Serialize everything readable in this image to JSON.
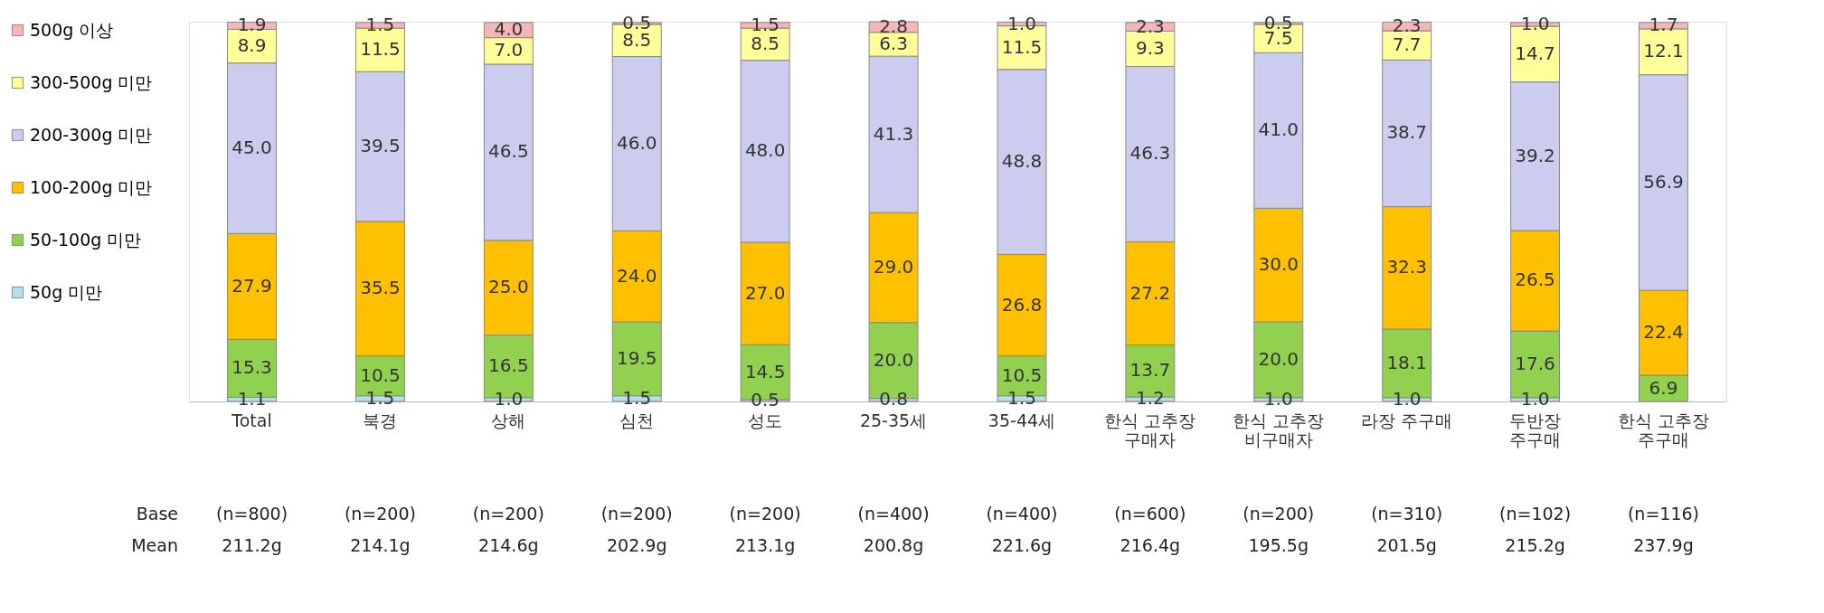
{
  "chart_data": {
    "type": "bar",
    "stacked": true,
    "legend": "left",
    "tick_labels": "x",
    "categories": [
      "Total",
      "북경",
      "상해",
      "심천",
      "성도",
      "25-35세",
      "35-44세",
      "한식 고추장 구매자",
      "한식 고추장 비구매자",
      "라장 주구매",
      "두반장 주구매",
      "한식 고추장 주구매"
    ],
    "series": [
      {
        "name": "50g 미만",
        "color": "#b7dde8",
        "values": [
          1.1,
          1.5,
          1.0,
          1.5,
          0.5,
          0.8,
          1.5,
          1.2,
          1.0,
          1.0,
          1.0,
          null
        ],
        "value_labels": [
          "1.1",
          "1.5",
          "1.0",
          "1.5",
          "0.5",
          "0.8",
          "1.5",
          "1.2",
          "1.0",
          "1.0",
          "1.0",
          null
        ]
      },
      {
        "name": "50-100g 미만",
        "color": "#92d050",
        "values": [
          15.3,
          10.5,
          16.5,
          19.5,
          14.5,
          20.0,
          10.5,
          13.7,
          20.0,
          18.1,
          17.6,
          6.9
        ],
        "value_labels": [
          "15.3",
          "10.5",
          "16.5",
          "19.5",
          "14.5",
          "20.0",
          "10.5",
          "13.7",
          "20.0",
          "18.1",
          "17.6",
          "6.9"
        ]
      },
      {
        "name": "100-200g 미만",
        "color": "#ffc000",
        "values": [
          27.9,
          35.5,
          25.0,
          24.0,
          27.0,
          29.0,
          26.8,
          27.2,
          30.0,
          32.3,
          26.5,
          22.4
        ],
        "value_labels": [
          "27.9",
          "35.5",
          "25.0",
          "24.0",
          "27.0",
          "29.0",
          "26.8",
          "27.2",
          "30.0",
          "32.3",
          "26.5",
          "22.4"
        ]
      },
      {
        "name": "200-300g 미만",
        "color": "#ccccee",
        "values": [
          45.0,
          39.5,
          46.5,
          46.0,
          48.0,
          41.3,
          48.8,
          46.3,
          41.0,
          38.7,
          39.2,
          56.9
        ],
        "value_labels": [
          "45.0",
          "39.5",
          "46.5",
          "46.0",
          "48.0",
          "41.3",
          "48.8",
          "46.3",
          "41.0",
          "38.7",
          "39.2",
          "56.9"
        ]
      },
      {
        "name": "300-500g 미만",
        "color": "#ffff99",
        "values": [
          8.9,
          11.5,
          7.0,
          8.5,
          8.5,
          6.3,
          11.5,
          9.3,
          7.5,
          7.7,
          14.7,
          12.1
        ],
        "value_labels": [
          "8.9",
          "11.5",
          "7.0",
          "8.5",
          "8.5",
          "6.3",
          "11.5",
          "9.3",
          "7.5",
          "7.7",
          "14.7",
          "12.1"
        ]
      },
      {
        "name": "500g 이상",
        "color": "#f4b6b8",
        "values": [
          1.9,
          1.5,
          4.0,
          0.5,
          1.5,
          2.8,
          1.0,
          2.3,
          0.5,
          2.3,
          1.0,
          1.7
        ],
        "value_labels": [
          "1.9",
          "1.5",
          "4.0",
          "0.5",
          "1.5",
          "2.8",
          "1.0",
          "2.3",
          "0.5",
          "2.3",
          "1.0",
          "1.7"
        ]
      }
    ],
    "annotations": [
      "Base",
      "Mean",
      "(n=800)",
      "(n=200)",
      "(n=200)",
      "(n=200)",
      "(n=200)",
      "(n=400)",
      "(n=400)",
      "(n=600)",
      "(n=200)",
      "(n=310)",
      "(n=102)",
      "(n=116)",
      "211.2g",
      "214.1g",
      "214.6g",
      "202.9g",
      "213.1g",
      "200.8g",
      "221.6g",
      "216.4g",
      "195.5g",
      "201.5g",
      "215.2g",
      "237.9g"
    ]
  }
}
